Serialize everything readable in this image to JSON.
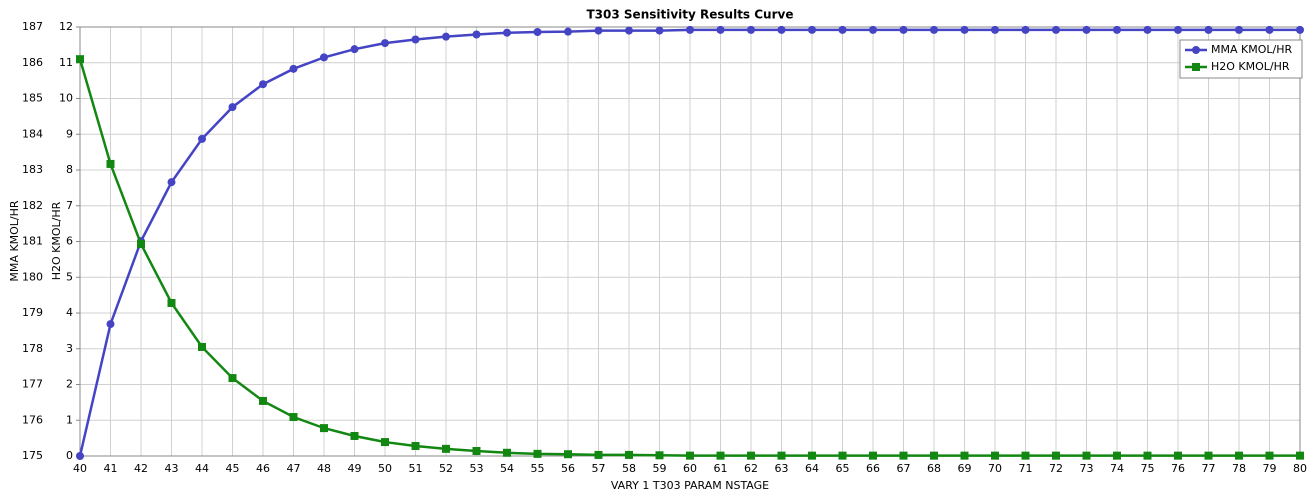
{
  "chart_data": {
    "type": "line",
    "title": "T303 Sensitivity Results Curve",
    "x_label": "VARY  1 T303 PARAM NSTAGE",
    "y_label": "MMA KMOL/HR",
    "y2_label": "H2O KMOL/HR",
    "x": [
      40,
      41,
      42,
      43,
      44,
      45,
      46,
      47,
      48,
      49,
      50,
      51,
      52,
      53,
      54,
      55,
      56,
      57,
      58,
      59,
      60,
      61,
      62,
      63,
      64,
      65,
      66,
      67,
      68,
      69,
      70,
      71,
      72,
      73,
      74,
      75,
      76,
      77,
      78,
      79,
      80
    ],
    "xlim": [
      40,
      80
    ],
    "xticks": [
      40,
      41,
      42,
      43,
      44,
      45,
      46,
      47,
      48,
      49,
      50,
      51,
      52,
      53,
      54,
      55,
      56,
      57,
      58,
      59,
      60,
      61,
      62,
      63,
      64,
      65,
      66,
      67,
      68,
      69,
      70,
      71,
      72,
      73,
      74,
      75,
      76,
      77,
      78,
      79,
      80
    ],
    "ylim": [
      175,
      187
    ],
    "yticks": [
      175,
      176,
      177,
      178,
      179,
      180,
      181,
      182,
      183,
      184,
      185,
      186,
      187
    ],
    "y2lim": [
      0,
      12
    ],
    "y2ticks": [
      0,
      1,
      2,
      3,
      4,
      5,
      6,
      7,
      8,
      9,
      10,
      11,
      12
    ],
    "grid": true,
    "legend": "upper right",
    "series": [
      {
        "name": "MMA KMOL/HR",
        "color": "#4444c4",
        "marker": "circle",
        "values": [
          175.0,
          178.69,
          181.01,
          182.66,
          183.87,
          184.76,
          185.4,
          185.83,
          186.15,
          186.38,
          186.55,
          186.65,
          186.73,
          186.79,
          186.84,
          186.86,
          186.87,
          186.9,
          186.9,
          186.9,
          186.92,
          186.92,
          186.92,
          186.92,
          186.92,
          186.92,
          186.92,
          186.92,
          186.92,
          186.92,
          186.92,
          186.92,
          186.92,
          186.92,
          186.92,
          186.92,
          186.92,
          186.92,
          186.92,
          186.92,
          186.92
        ]
      },
      {
        "name": "H2O KMOL/HR",
        "color": "#128812",
        "marker": "square",
        "axis": "y2",
        "values": [
          11.1,
          8.17,
          5.93,
          4.28,
          3.05,
          2.18,
          1.54,
          1.09,
          0.78,
          0.56,
          0.39,
          0.28,
          0.2,
          0.14,
          0.09,
          0.06,
          0.05,
          0.03,
          0.03,
          0.02,
          0.01,
          0.01,
          0.01,
          0.01,
          0.01,
          0.01,
          0.01,
          0.01,
          0.01,
          0.01,
          0.01,
          0.01,
          0.01,
          0.01,
          0.01,
          0.01,
          0.01,
          0.01,
          0.01,
          0.01,
          0.01
        ]
      }
    ]
  }
}
